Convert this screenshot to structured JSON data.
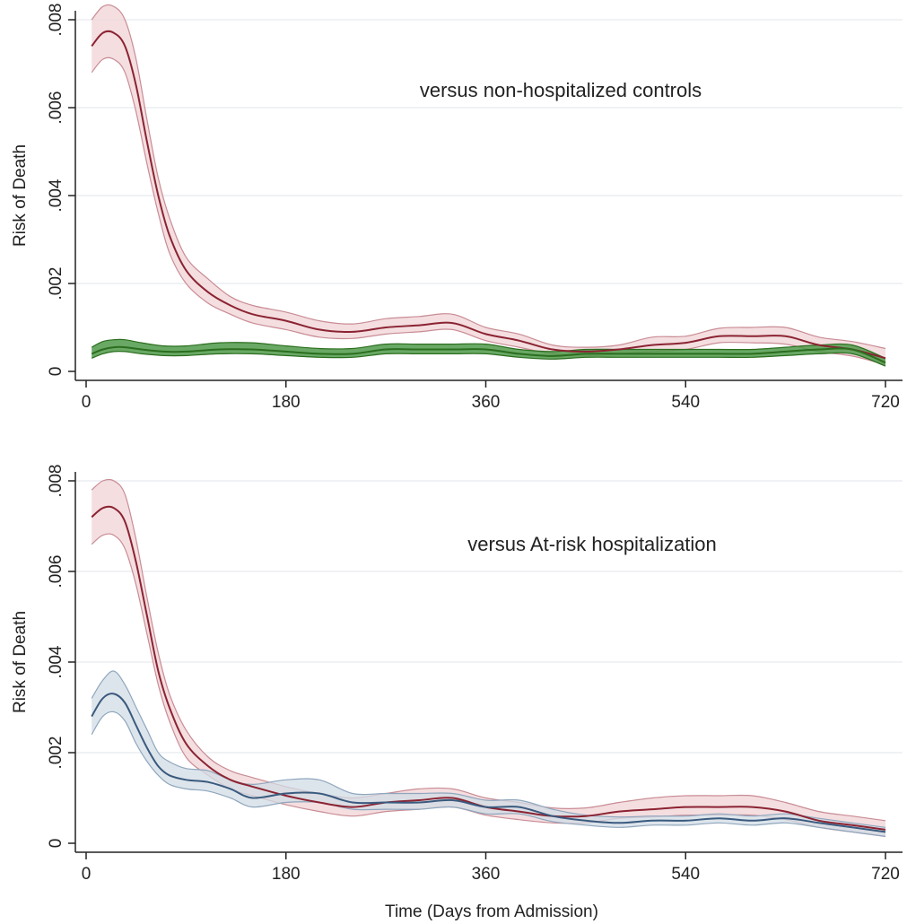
{
  "xlabel": "Time (Days from Admission)",
  "colors": {
    "index": "#8b2332",
    "index_band": "#f0d3d6",
    "index_band_edge": "#c98c95",
    "control": "#2c6e1f",
    "control_band": "#4f9a4a",
    "atrisk": "#3a5a7e",
    "atrisk_band": "#d2dce6",
    "atrisk_band_edge": "#8fa6bd",
    "grid": "#e6ebef",
    "axis": "#222222"
  },
  "chart_data": [
    {
      "type": "line",
      "title": "",
      "annotation": "versus non-hospitalized controls",
      "xlabel": "",
      "ylabel": "Risk of Death",
      "xlim": [
        0,
        720
      ],
      "ylim": [
        0,
        0.008
      ],
      "xticks": [
        0,
        180,
        360,
        540,
        720
      ],
      "xtick_labels": [
        "0",
        "180",
        "360",
        "540",
        "720"
      ],
      "yticks": [
        0,
        0.002,
        0.004,
        0.006,
        0.008
      ],
      "ytick_labels": [
        "0",
        ".002",
        ".004",
        ".006",
        ".008"
      ],
      "grid": true,
      "series": [
        {
          "key": "index",
          "x": [
            5,
            15,
            25,
            35,
            45,
            55,
            65,
            75,
            90,
            110,
            130,
            150,
            180,
            210,
            240,
            270,
            300,
            330,
            360,
            390,
            420,
            450,
            480,
            510,
            540,
            570,
            600,
            630,
            660,
            690,
            720
          ],
          "y": [
            0.0074,
            0.0077,
            0.0077,
            0.0074,
            0.0065,
            0.0052,
            0.004,
            0.0031,
            0.0023,
            0.0018,
            0.0015,
            0.0013,
            0.00115,
            0.00095,
            0.0009,
            0.001,
            0.00105,
            0.0011,
            0.00085,
            0.0007,
            0.0005,
            0.00045,
            0.0005,
            0.0006,
            0.00065,
            0.0008,
            0.0008,
            0.0008,
            0.0006,
            0.0005,
            0.0003
          ],
          "lower": [
            0.0068,
            0.0071,
            0.0071,
            0.0068,
            0.0059,
            0.0047,
            0.0036,
            0.0027,
            0.002,
            0.00155,
            0.0013,
            0.0011,
            0.00095,
            0.00078,
            0.00075,
            0.00085,
            0.0009,
            0.00095,
            0.0007,
            0.00055,
            0.0004,
            0.00035,
            0.0004,
            0.00045,
            0.0005,
            0.00065,
            0.00065,
            0.00062,
            0.00045,
            0.00035,
            0.00015
          ],
          "upper": [
            0.008,
            0.0083,
            0.0083,
            0.008,
            0.0071,
            0.0057,
            0.0044,
            0.0035,
            0.0026,
            0.0021,
            0.0017,
            0.0015,
            0.00135,
            0.00115,
            0.00108,
            0.0012,
            0.00125,
            0.0013,
            0.001,
            0.00085,
            0.0006,
            0.00055,
            0.0006,
            0.00078,
            0.0008,
            0.00098,
            0.001,
            0.001,
            0.00078,
            0.00068,
            0.00052
          ]
        },
        {
          "key": "control",
          "x": [
            5,
            15,
            25,
            35,
            50,
            70,
            90,
            120,
            150,
            180,
            210,
            240,
            270,
            300,
            330,
            360,
            390,
            420,
            450,
            480,
            510,
            540,
            570,
            600,
            630,
            660,
            690,
            720
          ],
          "y": [
            0.0004,
            0.0005,
            0.00055,
            0.00055,
            0.0005,
            0.00045,
            0.00045,
            0.0005,
            0.0005,
            0.00045,
            0.0004,
            0.0004,
            0.0005,
            0.0005,
            0.0005,
            0.0005,
            0.0004,
            0.00035,
            0.0004,
            0.0004,
            0.0004,
            0.0004,
            0.0004,
            0.0004,
            0.00045,
            0.0005,
            0.0005,
            0.0002
          ],
          "lower": [
            0.0003,
            0.0004,
            0.00045,
            0.00045,
            0.0004,
            0.00036,
            0.00036,
            0.0004,
            0.0004,
            0.00036,
            0.00032,
            0.00032,
            0.0004,
            0.0004,
            0.0004,
            0.0004,
            0.00032,
            0.00028,
            0.00032,
            0.00032,
            0.00032,
            0.00032,
            0.00032,
            0.00032,
            0.00036,
            0.0004,
            0.0004,
            0.00012
          ],
          "upper": [
            0.00055,
            0.00068,
            0.00072,
            0.00072,
            0.00065,
            0.00058,
            0.00058,
            0.00065,
            0.00065,
            0.00058,
            0.00052,
            0.00052,
            0.00062,
            0.00062,
            0.00062,
            0.00062,
            0.0005,
            0.00045,
            0.0005,
            0.0005,
            0.0005,
            0.0005,
            0.0005,
            0.0005,
            0.00055,
            0.0006,
            0.0006,
            0.0003
          ]
        }
      ]
    },
    {
      "type": "line",
      "title": "",
      "annotation": "versus At-risk hospitalization",
      "xlabel": "Time (Days from Admission)",
      "ylabel": "Risk of Death",
      "xlim": [
        0,
        720
      ],
      "ylim": [
        0,
        0.008
      ],
      "xticks": [
        0,
        180,
        360,
        540,
        720
      ],
      "xtick_labels": [
        "0",
        "180",
        "360",
        "540",
        "720"
      ],
      "yticks": [
        0,
        0.002,
        0.004,
        0.006,
        0.008
      ],
      "ytick_labels": [
        "0",
        ".002",
        ".004",
        ".006",
        ".008"
      ],
      "grid": true,
      "series": [
        {
          "key": "index",
          "x": [
            5,
            15,
            25,
            35,
            45,
            55,
            65,
            75,
            90,
            110,
            130,
            150,
            180,
            210,
            240,
            270,
            300,
            330,
            360,
            390,
            420,
            450,
            480,
            510,
            540,
            570,
            600,
            630,
            660,
            690,
            720
          ],
          "y": [
            0.0072,
            0.0074,
            0.0074,
            0.0071,
            0.0062,
            0.005,
            0.0038,
            0.003,
            0.0022,
            0.0017,
            0.0014,
            0.00125,
            0.00105,
            0.0009,
            0.0008,
            0.0009,
            0.00095,
            0.001,
            0.0008,
            0.0007,
            0.0006,
            0.0006,
            0.0007,
            0.00075,
            0.0008,
            0.0008,
            0.0008,
            0.0007,
            0.0005,
            0.0004,
            0.0003
          ],
          "lower": [
            0.0066,
            0.0068,
            0.0068,
            0.0065,
            0.0057,
            0.0046,
            0.0035,
            0.0027,
            0.0019,
            0.0015,
            0.0012,
            0.00105,
            0.00085,
            0.0007,
            0.0006,
            0.0007,
            0.00075,
            0.0008,
            0.00062,
            0.00052,
            0.00045,
            0.00045,
            0.00055,
            0.00058,
            0.00062,
            0.00062,
            0.00062,
            0.00052,
            0.00035,
            0.00025,
            0.00015
          ],
          "upper": [
            0.0078,
            0.008,
            0.008,
            0.0077,
            0.0067,
            0.0054,
            0.0042,
            0.0033,
            0.0025,
            0.0019,
            0.0016,
            0.00145,
            0.00125,
            0.0011,
            0.001,
            0.0011,
            0.0012,
            0.0012,
            0.001,
            0.0009,
            0.00078,
            0.00078,
            0.0009,
            0.001,
            0.00105,
            0.00105,
            0.00105,
            0.0009,
            0.0007,
            0.0006,
            0.0005
          ]
        },
        {
          "key": "atrisk",
          "x": [
            5,
            15,
            25,
            35,
            45,
            55,
            65,
            75,
            90,
            110,
            130,
            150,
            180,
            210,
            240,
            270,
            300,
            330,
            360,
            390,
            420,
            450,
            480,
            510,
            540,
            570,
            600,
            630,
            660,
            690,
            720
          ],
          "y": [
            0.0028,
            0.0032,
            0.0033,
            0.0031,
            0.0026,
            0.0021,
            0.0017,
            0.0015,
            0.0014,
            0.00135,
            0.0012,
            0.001,
            0.0011,
            0.0011,
            0.0009,
            0.0009,
            0.0009,
            0.00095,
            0.0008,
            0.0008,
            0.0006,
            0.0005,
            0.00045,
            0.0005,
            0.0005,
            0.00055,
            0.0005,
            0.00055,
            0.00045,
            0.00035,
            0.00025
          ],
          "lower": [
            0.0024,
            0.0028,
            0.0029,
            0.0027,
            0.0022,
            0.0018,
            0.0015,
            0.0013,
            0.0012,
            0.00115,
            0.001,
            0.0008,
            0.0009,
            0.0009,
            0.00075,
            0.00075,
            0.00075,
            0.0008,
            0.00065,
            0.00065,
            0.00048,
            0.0004,
            0.00035,
            0.0004,
            0.0004,
            0.00045,
            0.0004,
            0.00045,
            0.00035,
            0.00025,
            0.00015
          ],
          "upper": [
            0.0032,
            0.0036,
            0.0038,
            0.0035,
            0.003,
            0.0025,
            0.002,
            0.0018,
            0.00165,
            0.0016,
            0.0014,
            0.0013,
            0.0014,
            0.0014,
            0.0011,
            0.0011,
            0.0011,
            0.0011,
            0.00095,
            0.00095,
            0.00075,
            0.00062,
            0.00058,
            0.0006,
            0.0006,
            0.00065,
            0.0006,
            0.00065,
            0.00055,
            0.00045,
            0.00035
          ]
        }
      ]
    }
  ]
}
